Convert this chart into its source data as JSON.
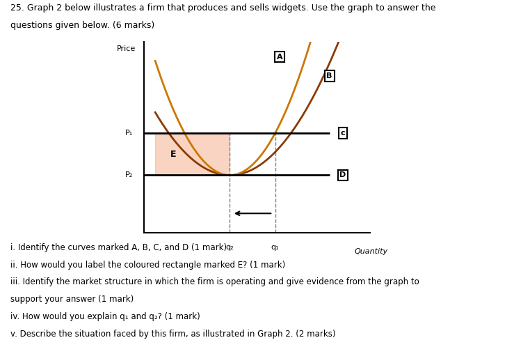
{
  "title_line1": "25. Graph 2 below illustrates a firm that produces and sells widgets. Use the graph to answer the",
  "title_line2": "questions given below. (6 marks)",
  "xlabel": "Quantity",
  "ylabel": "Price",
  "p1": 0.52,
  "p2": 0.3,
  "q1": 0.58,
  "q2": 0.38,
  "p1_label": "P₁",
  "p2_label": "P₂",
  "q1_label": "q₁",
  "q2_label": "q₂",
  "label_A": "A",
  "label_B": "B",
  "label_C": "c",
  "label_D": "D",
  "label_E": "E",
  "mc_color": "#CC7700",
  "atc_color": "#8B3A00",
  "horizontal_color": "#000000",
  "shade_color": "#F4A07A",
  "shade_alpha": 0.45,
  "questions": [
    "i. Identify the curves marked A, B, C, and D (1 mark)",
    "ii. How would you label the coloured rectangle marked E? (1 mark)",
    "iii. Identify the market structure in which the firm is operating and give evidence from the graph to",
    "support your answer (1 mark)",
    "iv. How would you explain q₁ and q₂? (1 mark)",
    "v. Describe the situation faced by this firm, as illustrated in Graph 2. (2 marks)"
  ]
}
